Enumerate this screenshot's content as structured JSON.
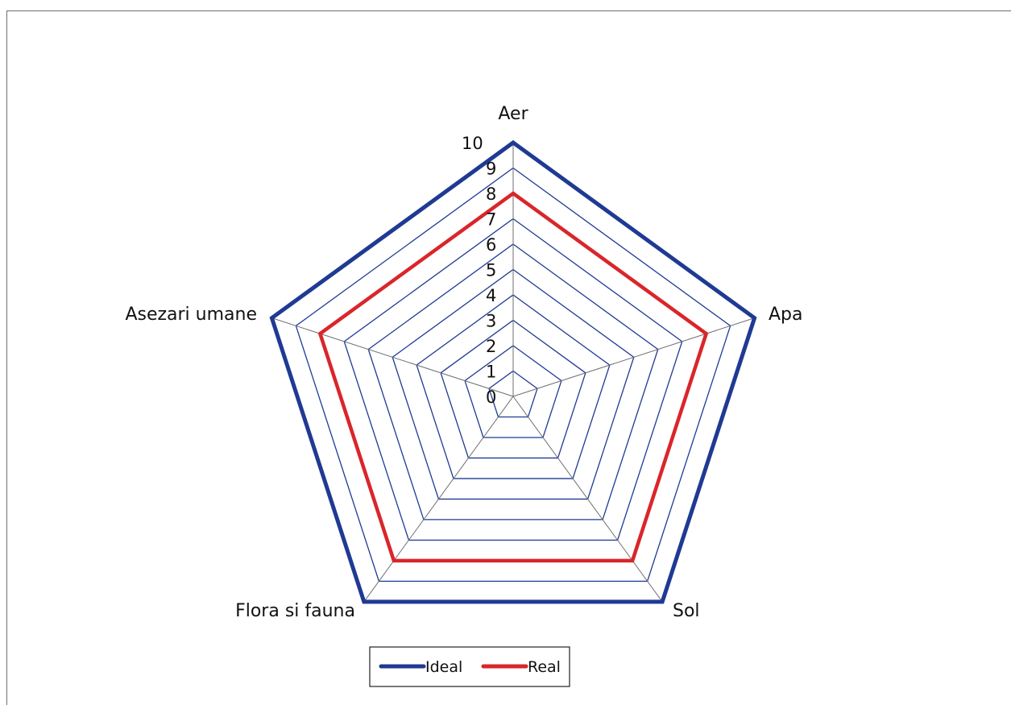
{
  "chart_data": {
    "type": "radar",
    "title": "",
    "categories": [
      "Aer",
      "Apa",
      "Sol",
      "Flora si fauna",
      "Asezari umane"
    ],
    "rticks": [
      "0",
      "1",
      "2",
      "3",
      "4",
      "5",
      "6",
      "7",
      "8",
      "9",
      "10"
    ],
    "rlim": [
      0,
      10
    ],
    "grid": true,
    "legend_position": "bottom",
    "series": [
      {
        "name": "Ideal",
        "color": "#1f3a93",
        "values": [
          10,
          10,
          10,
          10,
          10
        ]
      },
      {
        "name": "Real",
        "color": "#d9262b",
        "values": [
          8,
          8,
          8,
          8,
          8
        ]
      }
    ]
  }
}
